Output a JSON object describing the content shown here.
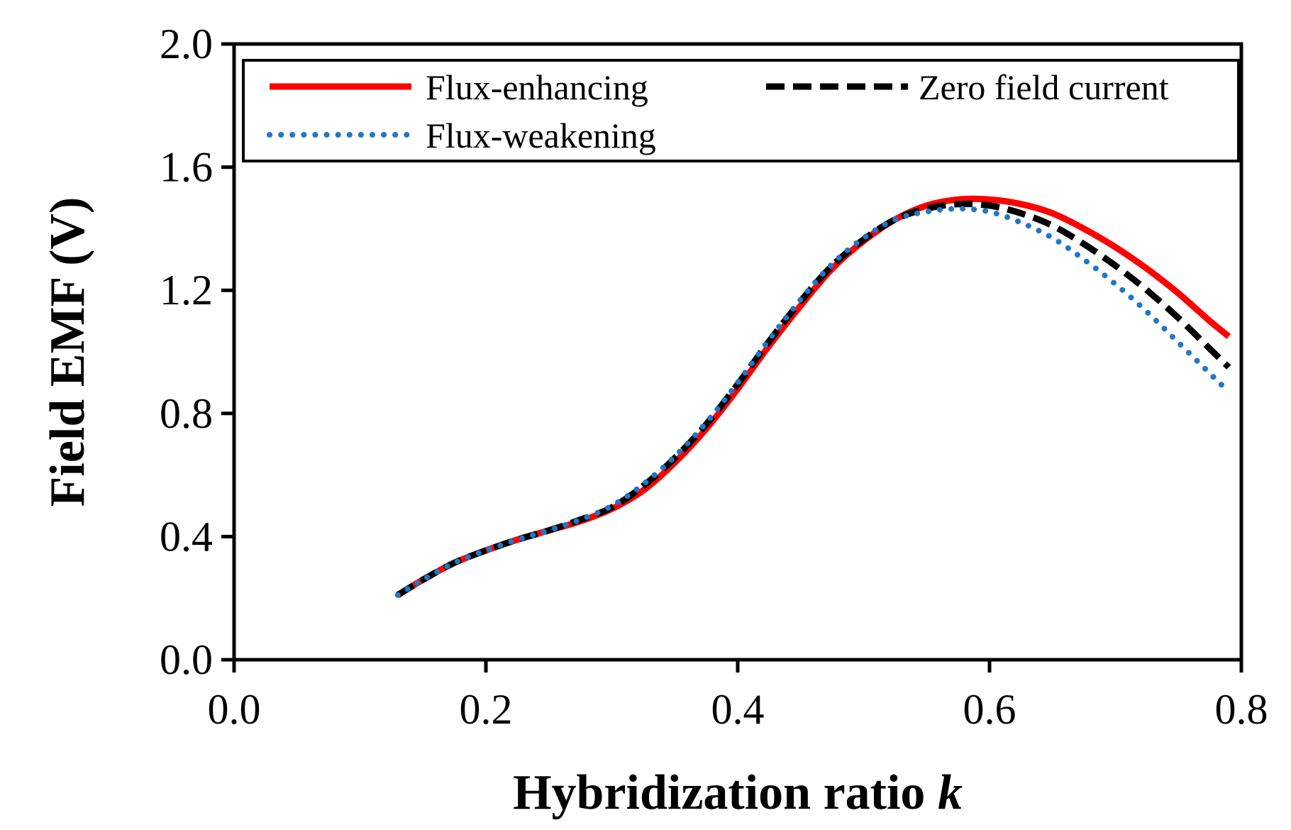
{
  "chart_data": {
    "type": "line",
    "title": "",
    "xlabel": "Hybridization ratio ",
    "xlabel_italic": "k",
    "ylabel": "Field EMF (V)",
    "xlim": [
      0.0,
      0.8
    ],
    "ylim": [
      0.0,
      2.0
    ],
    "xticks": [
      "0.0",
      "0.2",
      "0.4",
      "0.6",
      "0.8"
    ],
    "yticks": [
      "0.0",
      "0.4",
      "0.8",
      "1.2",
      "1.6",
      "2.0"
    ],
    "grid": false,
    "legend_position": "top",
    "series": [
      {
        "name": "Flux-enhancing",
        "style": "solid",
        "color": "#ff0000",
        "x": [
          0.13,
          0.15,
          0.175,
          0.2,
          0.225,
          0.25,
          0.275,
          0.3,
          0.325,
          0.35,
          0.375,
          0.4,
          0.425,
          0.45,
          0.475,
          0.5,
          0.525,
          0.55,
          0.575,
          0.6,
          0.625,
          0.65,
          0.675,
          0.7,
          0.725,
          0.75,
          0.775,
          0.79
        ],
        "y": [
          0.21,
          0.26,
          0.315,
          0.355,
          0.39,
          0.42,
          0.45,
          0.49,
          0.55,
          0.64,
          0.75,
          0.88,
          1.02,
          1.15,
          1.27,
          1.36,
          1.43,
          1.475,
          1.495,
          1.495,
          1.48,
          1.45,
          1.4,
          1.34,
          1.27,
          1.19,
          1.1,
          1.05
        ]
      },
      {
        "name": "Zero field current",
        "style": "dashed",
        "color": "#000000",
        "x": [
          0.13,
          0.15,
          0.175,
          0.2,
          0.225,
          0.25,
          0.275,
          0.3,
          0.325,
          0.35,
          0.375,
          0.4,
          0.425,
          0.45,
          0.475,
          0.5,
          0.525,
          0.55,
          0.575,
          0.6,
          0.625,
          0.65,
          0.675,
          0.7,
          0.725,
          0.75,
          0.775,
          0.79
        ],
        "y": [
          0.21,
          0.26,
          0.315,
          0.355,
          0.39,
          0.42,
          0.455,
          0.495,
          0.565,
          0.655,
          0.765,
          0.895,
          1.035,
          1.165,
          1.28,
          1.365,
          1.43,
          1.465,
          1.48,
          1.475,
          1.45,
          1.41,
          1.35,
          1.28,
          1.2,
          1.11,
          1.01,
          0.95
        ]
      },
      {
        "name": "Flux-weakening",
        "style": "dotted",
        "color": "#1f77c8",
        "x": [
          0.13,
          0.15,
          0.175,
          0.2,
          0.225,
          0.25,
          0.275,
          0.3,
          0.325,
          0.35,
          0.375,
          0.4,
          0.425,
          0.45,
          0.475,
          0.5,
          0.525,
          0.55,
          0.575,
          0.6,
          0.625,
          0.65,
          0.675,
          0.7,
          0.725,
          0.75,
          0.775,
          0.79
        ],
        "y": [
          0.21,
          0.26,
          0.315,
          0.355,
          0.39,
          0.42,
          0.455,
          0.5,
          0.57,
          0.66,
          0.77,
          0.9,
          1.04,
          1.17,
          1.285,
          1.37,
          1.43,
          1.455,
          1.465,
          1.455,
          1.42,
          1.37,
          1.3,
          1.22,
          1.13,
          1.03,
          0.93,
          0.87
        ]
      }
    ],
    "legend_order": [
      0,
      1,
      2
    ]
  }
}
